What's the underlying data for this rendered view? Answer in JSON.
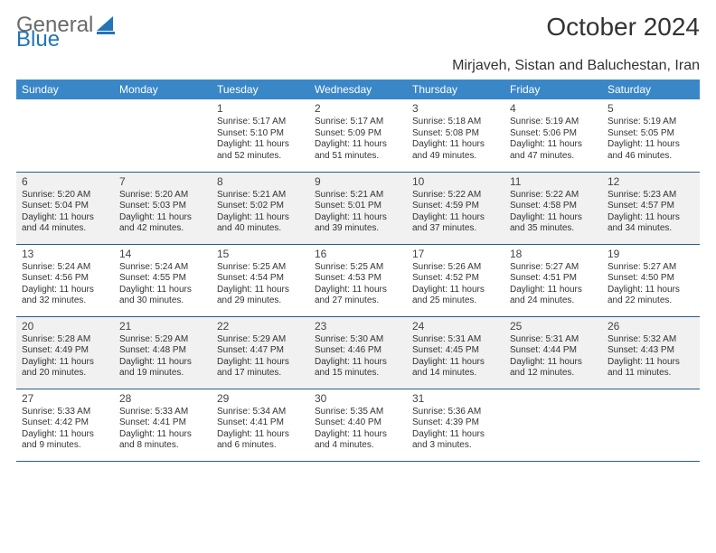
{
  "brand": {
    "part1": "General",
    "part2": "Blue"
  },
  "title": "October 2024",
  "location": "Mirjaveh, Sistan and Baluchestan, Iran",
  "colors": {
    "header_bg": "#3a87c8",
    "header_text": "#ffffff",
    "row_border": "#2c5a87",
    "alt_row_bg": "#f1f1f1",
    "brand_blue": "#2175b8",
    "brand_gray": "#6a6a6a"
  },
  "weekdays": [
    "Sunday",
    "Monday",
    "Tuesday",
    "Wednesday",
    "Thursday",
    "Friday",
    "Saturday"
  ],
  "weeks": [
    [
      {
        "num": "",
        "text": ""
      },
      {
        "num": "",
        "text": ""
      },
      {
        "num": "1",
        "text": "Sunrise: 5:17 AM\nSunset: 5:10 PM\nDaylight: 11 hours and 52 minutes."
      },
      {
        "num": "2",
        "text": "Sunrise: 5:17 AM\nSunset: 5:09 PM\nDaylight: 11 hours and 51 minutes."
      },
      {
        "num": "3",
        "text": "Sunrise: 5:18 AM\nSunset: 5:08 PM\nDaylight: 11 hours and 49 minutes."
      },
      {
        "num": "4",
        "text": "Sunrise: 5:19 AM\nSunset: 5:06 PM\nDaylight: 11 hours and 47 minutes."
      },
      {
        "num": "5",
        "text": "Sunrise: 5:19 AM\nSunset: 5:05 PM\nDaylight: 11 hours and 46 minutes."
      }
    ],
    [
      {
        "num": "6",
        "text": "Sunrise: 5:20 AM\nSunset: 5:04 PM\nDaylight: 11 hours and 44 minutes."
      },
      {
        "num": "7",
        "text": "Sunrise: 5:20 AM\nSunset: 5:03 PM\nDaylight: 11 hours and 42 minutes."
      },
      {
        "num": "8",
        "text": "Sunrise: 5:21 AM\nSunset: 5:02 PM\nDaylight: 11 hours and 40 minutes."
      },
      {
        "num": "9",
        "text": "Sunrise: 5:21 AM\nSunset: 5:01 PM\nDaylight: 11 hours and 39 minutes."
      },
      {
        "num": "10",
        "text": "Sunrise: 5:22 AM\nSunset: 4:59 PM\nDaylight: 11 hours and 37 minutes."
      },
      {
        "num": "11",
        "text": "Sunrise: 5:22 AM\nSunset: 4:58 PM\nDaylight: 11 hours and 35 minutes."
      },
      {
        "num": "12",
        "text": "Sunrise: 5:23 AM\nSunset: 4:57 PM\nDaylight: 11 hours and 34 minutes."
      }
    ],
    [
      {
        "num": "13",
        "text": "Sunrise: 5:24 AM\nSunset: 4:56 PM\nDaylight: 11 hours and 32 minutes."
      },
      {
        "num": "14",
        "text": "Sunrise: 5:24 AM\nSunset: 4:55 PM\nDaylight: 11 hours and 30 minutes."
      },
      {
        "num": "15",
        "text": "Sunrise: 5:25 AM\nSunset: 4:54 PM\nDaylight: 11 hours and 29 minutes."
      },
      {
        "num": "16",
        "text": "Sunrise: 5:25 AM\nSunset: 4:53 PM\nDaylight: 11 hours and 27 minutes."
      },
      {
        "num": "17",
        "text": "Sunrise: 5:26 AM\nSunset: 4:52 PM\nDaylight: 11 hours and 25 minutes."
      },
      {
        "num": "18",
        "text": "Sunrise: 5:27 AM\nSunset: 4:51 PM\nDaylight: 11 hours and 24 minutes."
      },
      {
        "num": "19",
        "text": "Sunrise: 5:27 AM\nSunset: 4:50 PM\nDaylight: 11 hours and 22 minutes."
      }
    ],
    [
      {
        "num": "20",
        "text": "Sunrise: 5:28 AM\nSunset: 4:49 PM\nDaylight: 11 hours and 20 minutes."
      },
      {
        "num": "21",
        "text": "Sunrise: 5:29 AM\nSunset: 4:48 PM\nDaylight: 11 hours and 19 minutes."
      },
      {
        "num": "22",
        "text": "Sunrise: 5:29 AM\nSunset: 4:47 PM\nDaylight: 11 hours and 17 minutes."
      },
      {
        "num": "23",
        "text": "Sunrise: 5:30 AM\nSunset: 4:46 PM\nDaylight: 11 hours and 15 minutes."
      },
      {
        "num": "24",
        "text": "Sunrise: 5:31 AM\nSunset: 4:45 PM\nDaylight: 11 hours and 14 minutes."
      },
      {
        "num": "25",
        "text": "Sunrise: 5:31 AM\nSunset: 4:44 PM\nDaylight: 11 hours and 12 minutes."
      },
      {
        "num": "26",
        "text": "Sunrise: 5:32 AM\nSunset: 4:43 PM\nDaylight: 11 hours and 11 minutes."
      }
    ],
    [
      {
        "num": "27",
        "text": "Sunrise: 5:33 AM\nSunset: 4:42 PM\nDaylight: 11 hours and 9 minutes."
      },
      {
        "num": "28",
        "text": "Sunrise: 5:33 AM\nSunset: 4:41 PM\nDaylight: 11 hours and 8 minutes."
      },
      {
        "num": "29",
        "text": "Sunrise: 5:34 AM\nSunset: 4:41 PM\nDaylight: 11 hours and 6 minutes."
      },
      {
        "num": "30",
        "text": "Sunrise: 5:35 AM\nSunset: 4:40 PM\nDaylight: 11 hours and 4 minutes."
      },
      {
        "num": "31",
        "text": "Sunrise: 5:36 AM\nSunset: 4:39 PM\nDaylight: 11 hours and 3 minutes."
      },
      {
        "num": "",
        "text": ""
      },
      {
        "num": "",
        "text": ""
      }
    ]
  ]
}
